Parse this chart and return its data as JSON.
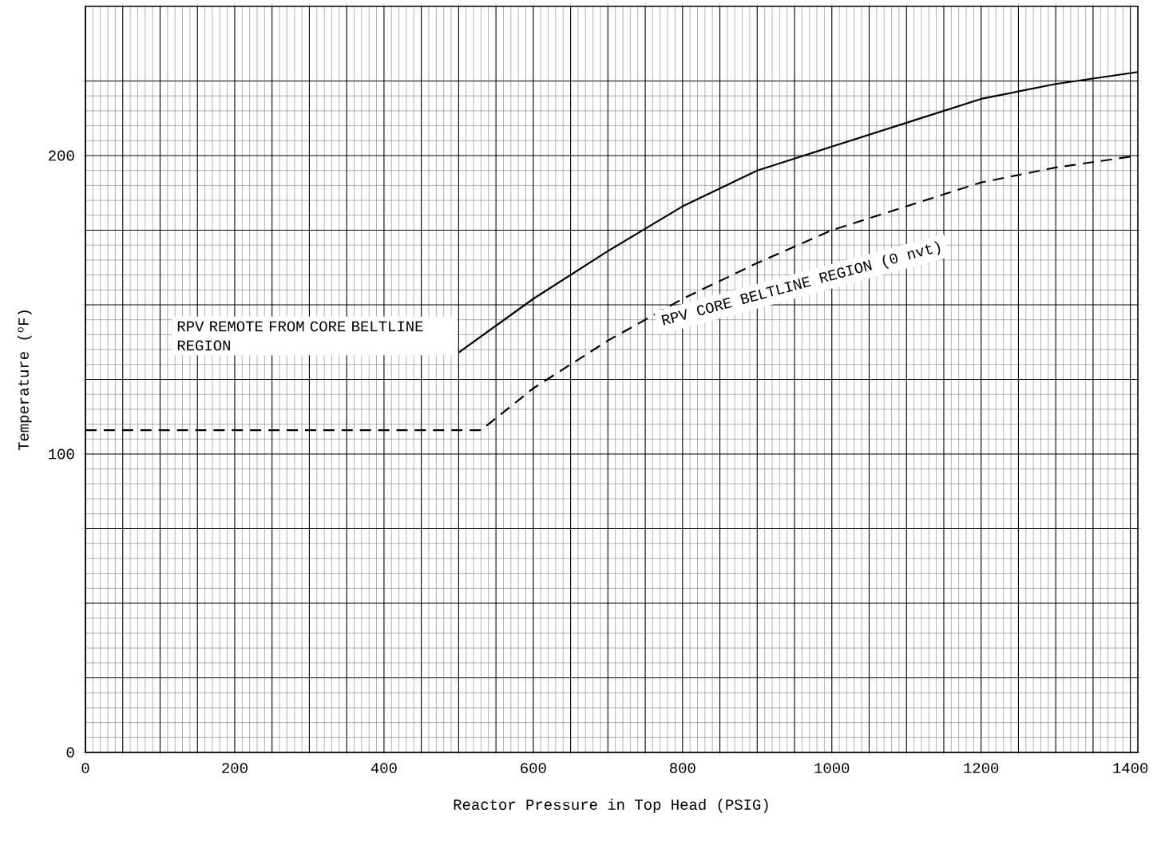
{
  "chart_data": {
    "type": "line",
    "xlabel": "Reactor Pressure in Top Head (PSIG)",
    "ylabel": "Temperature ($^{o}$F)",
    "xlim": [
      0,
      1410
    ],
    "ylim": [
      0,
      250
    ],
    "xticks": [
      0,
      {
        "value": 50,
        "label": null
      },
      {
        "value": 100,
        "label": null
      },
      {
        "value": 150,
        "label": null
      },
      200,
      {
        "value": 250,
        "label": null
      },
      {
        "value": 300,
        "label": null
      },
      {
        "value": 350,
        "label": null
      },
      400,
      {
        "value": 450,
        "label": null
      },
      {
        "value": 500,
        "label": null
      },
      {
        "value": 550,
        "label": null
      },
      600,
      {
        "value": 650,
        "label": null
      },
      {
        "value": 700,
        "label": null
      },
      {
        "value": 750,
        "label": null
      },
      800,
      {
        "value": 850,
        "label": null
      },
      {
        "value": 900,
        "label": null
      },
      {
        "value": 950,
        "label": null
      },
      1000,
      {
        "value": 1050,
        "label": null
      },
      {
        "value": 1100,
        "label": null
      },
      {
        "value": 1150,
        "label": null
      },
      1200,
      {
        "value": 1250,
        "label": null
      },
      {
        "value": 1300,
        "label": null
      },
      {
        "value": 1350,
        "label": null
      },
      1400
    ],
    "yticks": [
      0,
      {
        "value": 25,
        "label": null
      },
      {
        "value": 50,
        "label": null
      },
      {
        "value": 75,
        "label": null
      },
      100,
      {
        "value": 125,
        "label": null
      },
      {
        "value": 150,
        "label": null
      },
      {
        "value": 175,
        "label": null
      },
      200,
      {
        "value": 225,
        "label": null
      }
    ],
    "grid": true,
    "marker": "none",
    "series": [
      {
        "name": "RPV REMOTE FROM CORE BELTLINE REGION",
        "color": "#000000",
        "line_style": "solid",
        "x": [
          500,
          550,
          600,
          700,
          800,
          900,
          1000,
          1100,
          1200,
          1300,
          1410
        ],
        "values": [
          134,
          143,
          152,
          168,
          183,
          195,
          203,
          211,
          219,
          224,
          228
        ]
      },
      {
        "name": "RPV CORE BELTLINE REGION (0 nvt)",
        "color": "#000000",
        "line_style": "dashed",
        "x": [
          0,
          530,
          600,
          700,
          800,
          900,
          1000,
          1100,
          1200,
          1300,
          1410
        ],
        "values": [
          108,
          108,
          122,
          138,
          152,
          164,
          175,
          183,
          191,
          196,
          200
        ]
      }
    ]
  }
}
